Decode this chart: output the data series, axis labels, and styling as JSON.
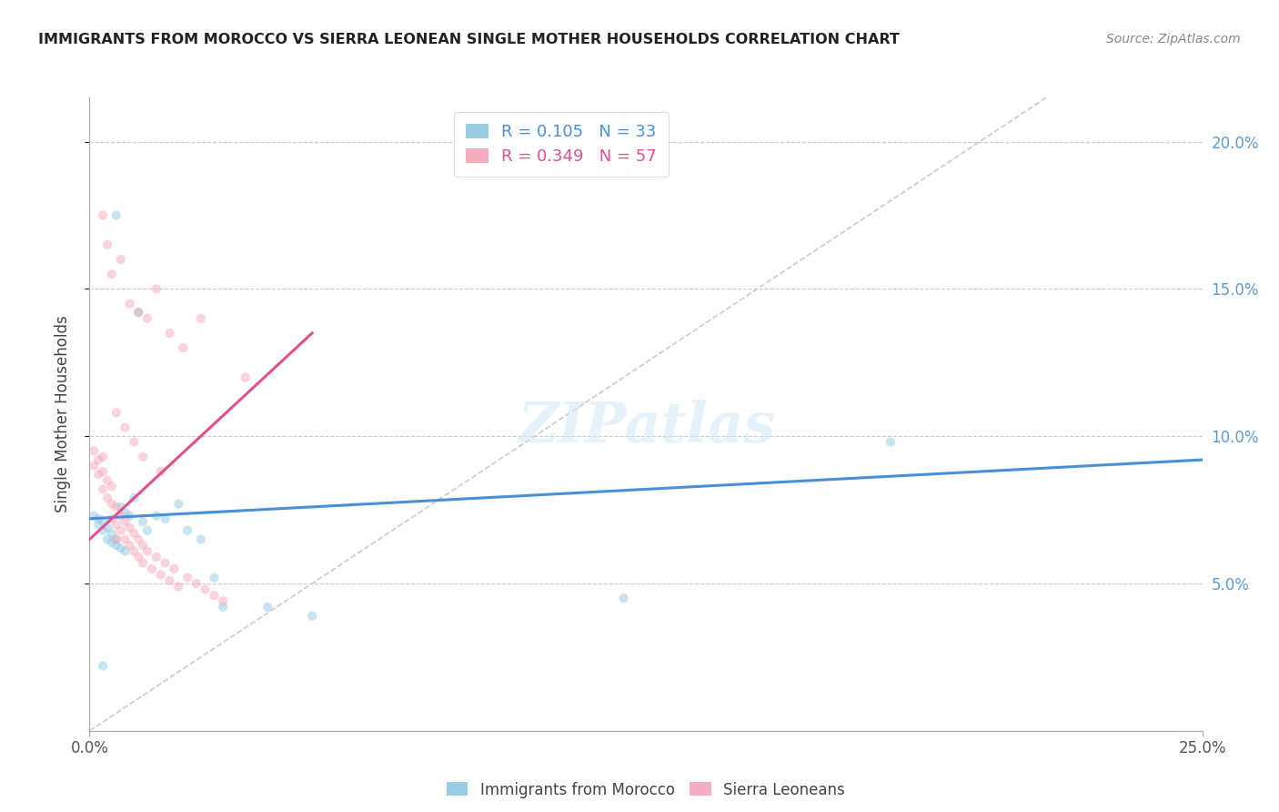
{
  "title": "IMMIGRANTS FROM MOROCCO VS SIERRA LEONEAN SINGLE MOTHER HOUSEHOLDS CORRELATION CHART",
  "source": "Source: ZipAtlas.com",
  "ylabel": "Single Mother Households",
  "xlim": [
    0.0,
    0.25
  ],
  "ylim": [
    0.0,
    0.215
  ],
  "background_color": "#ffffff",
  "grid_color": "#cccccc",
  "scatter_alpha": 0.45,
  "scatter_size": 55,
  "blue_color": "#89c4e1",
  "pink_color": "#f4a0b5",
  "blue_line_color": "#4a90d9",
  "pink_line_color": "#e05090",
  "diagonal_color": "#cccccc",
  "blue_scatter_x": [
    0.001,
    0.002,
    0.002,
    0.003,
    0.003,
    0.004,
    0.004,
    0.005,
    0.005,
    0.006,
    0.006,
    0.007,
    0.007,
    0.008,
    0.008,
    0.009,
    0.01,
    0.011,
    0.012,
    0.013,
    0.015,
    0.017,
    0.02,
    0.022,
    0.025,
    0.028,
    0.03,
    0.04,
    0.05,
    0.12,
    0.18,
    0.003,
    0.006
  ],
  "blue_scatter_y": [
    0.073,
    0.072,
    0.07,
    0.071,
    0.068,
    0.069,
    0.065,
    0.067,
    0.064,
    0.065,
    0.063,
    0.076,
    0.062,
    0.074,
    0.061,
    0.073,
    0.079,
    0.142,
    0.071,
    0.068,
    0.073,
    0.072,
    0.077,
    0.068,
    0.065,
    0.052,
    0.042,
    0.042,
    0.039,
    0.045,
    0.098,
    0.022,
    0.175
  ],
  "pink_scatter_x": [
    0.001,
    0.001,
    0.002,
    0.002,
    0.003,
    0.003,
    0.003,
    0.004,
    0.004,
    0.005,
    0.005,
    0.005,
    0.006,
    0.006,
    0.006,
    0.007,
    0.007,
    0.008,
    0.008,
    0.009,
    0.009,
    0.01,
    0.01,
    0.011,
    0.011,
    0.012,
    0.012,
    0.013,
    0.014,
    0.015,
    0.016,
    0.017,
    0.018,
    0.019,
    0.02,
    0.022,
    0.024,
    0.026,
    0.028,
    0.03,
    0.003,
    0.004,
    0.005,
    0.007,
    0.009,
    0.011,
    0.013,
    0.015,
    0.018,
    0.021,
    0.006,
    0.008,
    0.01,
    0.012,
    0.016,
    0.025,
    0.035
  ],
  "pink_scatter_y": [
    0.09,
    0.095,
    0.087,
    0.092,
    0.082,
    0.088,
    0.093,
    0.085,
    0.079,
    0.083,
    0.077,
    0.072,
    0.076,
    0.07,
    0.065,
    0.073,
    0.068,
    0.071,
    0.065,
    0.069,
    0.063,
    0.067,
    0.061,
    0.065,
    0.059,
    0.063,
    0.057,
    0.061,
    0.055,
    0.059,
    0.053,
    0.057,
    0.051,
    0.055,
    0.049,
    0.052,
    0.05,
    0.048,
    0.046,
    0.044,
    0.175,
    0.165,
    0.155,
    0.16,
    0.145,
    0.142,
    0.14,
    0.15,
    0.135,
    0.13,
    0.108,
    0.103,
    0.098,
    0.093,
    0.088,
    0.14,
    0.12
  ],
  "blue_line_x": [
    0.0,
    0.25
  ],
  "blue_line_y": [
    0.072,
    0.092
  ],
  "pink_line_x": [
    0.0,
    0.05
  ],
  "pink_line_y": [
    0.065,
    0.135
  ],
  "diag_line_x": [
    0.0,
    0.215
  ],
  "diag_line_y": [
    0.0,
    0.215
  ]
}
